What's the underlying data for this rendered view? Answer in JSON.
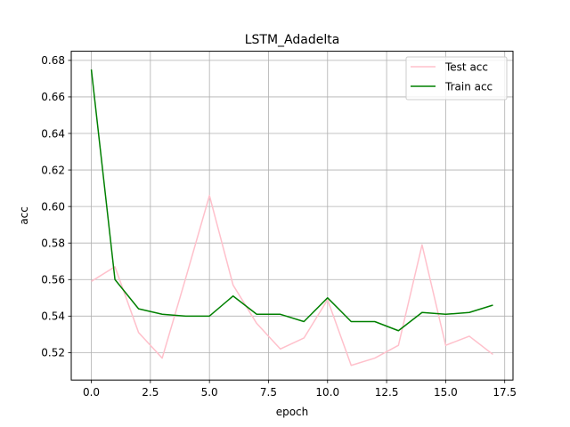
{
  "chart_data": {
    "type": "line",
    "title": "LSTM_Adadelta",
    "xlabel": "epoch",
    "ylabel": "acc",
    "xlim": [
      -0.85,
      17.85
    ],
    "ylim": [
      0.505,
      0.685
    ],
    "xticks": [
      0.0,
      2.5,
      5.0,
      7.5,
      10.0,
      12.5,
      15.0,
      17.5
    ],
    "xtick_labels": [
      "0.0",
      "2.5",
      "5.0",
      "7.5",
      "10.0",
      "12.5",
      "15.0",
      "17.5"
    ],
    "yticks": [
      0.52,
      0.54,
      0.56,
      0.58,
      0.6,
      0.62,
      0.64,
      0.66,
      0.68
    ],
    "ytick_labels": [
      "0.52",
      "0.54",
      "0.56",
      "0.58",
      "0.60",
      "0.62",
      "0.64",
      "0.66",
      "0.68"
    ],
    "grid": true,
    "legend_position": "top-right",
    "x": [
      0,
      1,
      2,
      3,
      4,
      5,
      6,
      7,
      8,
      9,
      10,
      11,
      12,
      13,
      14,
      15,
      16,
      17
    ],
    "series": [
      {
        "name": "Test acc",
        "color": "#ffc0cb",
        "values": [
          0.559,
          0.567,
          0.531,
          0.517,
          0.561,
          0.606,
          0.557,
          0.536,
          0.522,
          0.528,
          0.549,
          0.513,
          0.517,
          0.524,
          0.579,
          0.524,
          0.529,
          0.519
        ]
      },
      {
        "name": "Train acc",
        "color": "#008000",
        "values": [
          0.675,
          0.56,
          0.544,
          0.541,
          0.54,
          0.54,
          0.551,
          0.541,
          0.541,
          0.537,
          0.55,
          0.537,
          0.537,
          0.532,
          0.542,
          0.541,
          0.542,
          0.546
        ]
      }
    ]
  }
}
